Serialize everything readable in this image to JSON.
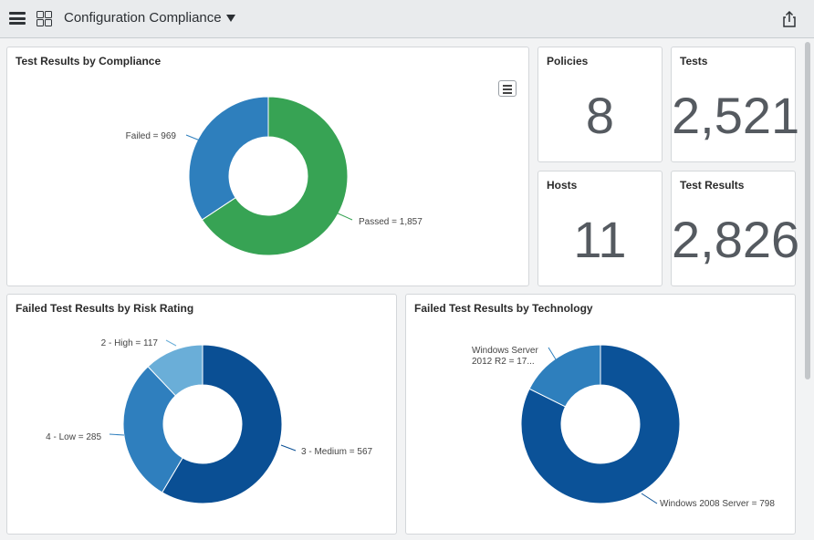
{
  "header": {
    "title": "Configuration Compliance"
  },
  "colors": {
    "passed": "#37a354",
    "failed": "#2e7fbd",
    "medium": "#0a4f94",
    "low": "#2f7fbe",
    "high": "#6aaed8",
    "windows_2008": "#0b5298",
    "windows_2012": "#2e7fbd"
  },
  "stats": {
    "policies": {
      "label": "Policies",
      "value": "8"
    },
    "tests": {
      "label": "Tests",
      "value": "2,521"
    },
    "hosts": {
      "label": "Hosts",
      "value": "11"
    },
    "test_results": {
      "label": "Test Results",
      "value": "2,826"
    }
  },
  "chart_data": [
    {
      "type": "pie",
      "title": "Test Results by Compliance",
      "categories": [
        "Passed",
        "Failed"
      ],
      "values": [
        1857,
        969
      ],
      "labels": [
        "Passed = 1,857",
        "Failed = 969"
      ]
    },
    {
      "type": "pie",
      "title": "Failed Test Results by Risk Rating",
      "categories": [
        "3 - Medium",
        "4 - Low",
        "2 - High"
      ],
      "values": [
        567,
        285,
        117
      ],
      "labels": [
        "3 - Medium = 567",
        "4 - Low = 285",
        "2 - High = 117"
      ]
    },
    {
      "type": "pie",
      "title": "Failed Test Results by Technology",
      "categories": [
        "Windows 2008 Server",
        "Windows Server 2012 R2"
      ],
      "values": [
        798,
        171
      ],
      "labels": [
        "Windows 2008 Server = 798",
        "Windows Server",
        "2012 R2 = 17..."
      ]
    }
  ]
}
